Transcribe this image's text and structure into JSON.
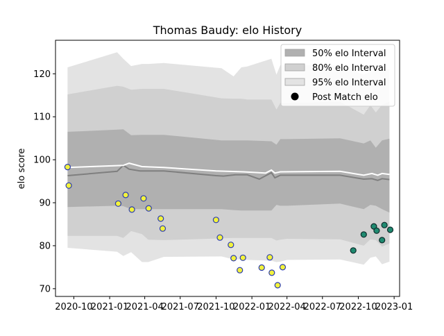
{
  "chart_data": {
    "type": "area",
    "title": "Thomas Baudy: elo History",
    "xlabel": "",
    "ylabel": "elo score",
    "xlim": [
      "2020-08-15",
      "2023-01-15"
    ],
    "ylim": [
      68.2,
      127.8
    ],
    "x_ticks": [
      "2020-10",
      "2021-01",
      "2021-04",
      "2021-07",
      "2021-10",
      "2022-01",
      "2022-04",
      "2022-07",
      "2022-10",
      "2023-01"
    ],
    "x_tick_labels": [
      "2020-10",
      "2021-01",
      "2021-04",
      "2021-07",
      "2021-10",
      "2022-01",
      "2022-04",
      "2022-07",
      "2022-10",
      "2023-01"
    ],
    "y_ticks": [
      70,
      80,
      90,
      100,
      110,
      120
    ],
    "grid": false,
    "legend_position": "top-right",
    "legend": [
      {
        "label": "50% elo Interval",
        "kind": "patch",
        "color": "#b0b0b0"
      },
      {
        "label": "80% elo Interval",
        "kind": "patch",
        "color": "#c8c8c8"
      },
      {
        "label": "95% elo Interval",
        "kind": "patch",
        "color": "#e0e0e0"
      },
      {
        "label": "Post Match elo",
        "kind": "marker",
        "color": "#000000"
      }
    ],
    "colors": {
      "band50": "#b0b0b0",
      "band80": "#d0d0d0",
      "band95": "#e3e3e3",
      "mean_line": "#ffffff",
      "median_line": "#7f7f7f",
      "marker_fill_early": "#f2f23c",
      "marker_edge_early": "#2a3bb0",
      "marker_fill_late": "#1f8a70",
      "marker_edge_late": "#0d2b2a"
    },
    "bands": {
      "x": [
        "2020-09-15",
        "2021-01-20",
        "2021-02-05",
        "2021-02-25",
        "2021-03-25",
        "2021-04-10",
        "2021-05-20",
        "2021-10-15",
        "2021-11-15",
        "2021-12-05",
        "2021-12-20",
        "2022-02-20",
        "2022-03-05",
        "2022-03-15",
        "2022-04-01",
        "2022-08-15",
        "2022-10-15",
        "2022-11-01",
        "2022-11-15",
        "2022-12-01",
        "2022-12-20"
      ],
      "lo95": [
        79.5,
        78.6,
        77.6,
        78.5,
        76.2,
        76.2,
        77.4,
        77.5,
        76.8,
        76.8,
        76.7,
        76.5,
        76.2,
        76.3,
        76.7,
        76.8,
        75.6,
        77.2,
        77.5,
        75.7,
        76.3
      ],
      "hi95": [
        121.5,
        125.0,
        123.5,
        121.8,
        122.3,
        122.3,
        122.5,
        121.3,
        119.4,
        121.5,
        121.7,
        123.5,
        119.8,
        122.0,
        122.0,
        122.0,
        119.8,
        120.5,
        121.0,
        121.3,
        121.0
      ],
      "lo80": [
        82.3,
        82.3,
        81.8,
        83.4,
        82.7,
        81.4,
        81.3,
        81.7,
        81.8,
        81.8,
        81.8,
        81.8,
        81.2,
        81.4,
        81.6,
        81.5,
        80.0,
        81.5,
        81.3,
        79.8,
        80.5
      ],
      "hi80": [
        115.2,
        117.2,
        117.0,
        116.3,
        116.5,
        116.5,
        116.5,
        114.3,
        114.2,
        114.2,
        114.0,
        114.0,
        111.7,
        113.2,
        113.2,
        113.5,
        110.5,
        112.7,
        111.0,
        112.8,
        113.5
      ],
      "lo50": [
        89.0,
        89.3,
        89.2,
        88.5,
        88.5,
        88.5,
        88.5,
        88.5,
        88.3,
        88.2,
        88.2,
        88.2,
        89.5,
        89.3,
        89.3,
        89.8,
        88.5,
        89.5,
        89.3,
        88.5,
        87.7
      ],
      "hi50": [
        106.5,
        107.0,
        107.1,
        105.7,
        105.8,
        105.8,
        105.8,
        104.5,
        104.5,
        104.5,
        104.5,
        104.3,
        103.5,
        104.8,
        104.8,
        105.0,
        103.8,
        104.5,
        102.8,
        104.5,
        104.9
      ]
    },
    "mean_line": {
      "x": [
        "2020-09-15",
        "2021-02-05",
        "2021-02-20",
        "2021-03-25",
        "2021-05-20",
        "2021-10-01",
        "2021-12-10",
        "2022-02-05",
        "2022-02-20",
        "2022-03-01",
        "2022-03-15",
        "2022-08-15",
        "2022-10-15",
        "2022-11-05",
        "2022-11-20",
        "2022-12-01",
        "2022-12-20"
      ],
      "y": [
        98.2,
        98.7,
        99.2,
        98.4,
        98.2,
        97.4,
        97.2,
        96.9,
        97.6,
        96.9,
        97.2,
        97.3,
        96.4,
        96.8,
        96.4,
        96.8,
        96.6
      ]
    },
    "median_line": {
      "x": [
        "2020-09-15",
        "2021-01-20",
        "2021-02-05",
        "2021-02-20",
        "2021-03-20",
        "2021-05-20",
        "2021-10-01",
        "2021-10-20",
        "2021-11-20",
        "2021-12-20",
        "2022-01-20",
        "2022-02-20",
        "2022-03-01",
        "2022-03-15",
        "2022-08-15",
        "2022-10-15",
        "2022-11-05",
        "2022-11-20",
        "2022-12-01",
        "2022-12-20"
      ],
      "y": [
        96.3,
        97.3,
        98.7,
        97.8,
        97.4,
        97.4,
        96.3,
        96.2,
        96.5,
        96.5,
        95.5,
        97.0,
        95.8,
        96.4,
        96.4,
        95.5,
        95.6,
        95.2,
        95.6,
        95.4
      ]
    },
    "series": [
      {
        "name": "Post Match elo",
        "x": [
          "2020-09-15",
          "2020-09-18",
          "2021-01-23",
          "2021-02-11",
          "2021-02-27",
          "2021-03-29",
          "2021-04-11",
          "2021-05-12",
          "2021-05-17",
          "2021-10-01",
          "2021-10-11",
          "2021-11-08",
          "2021-11-15",
          "2021-12-01",
          "2021-12-09",
          "2022-01-26",
          "2022-02-16",
          "2022-02-21",
          "2022-03-08",
          "2022-03-21"
        ],
        "y": [
          98.3,
          94.0,
          89.8,
          91.8,
          88.4,
          91.0,
          88.7,
          86.3,
          84.0,
          86.0,
          81.9,
          80.2,
          77.1,
          74.3,
          77.2,
          74.9,
          77.3,
          73.7,
          70.8,
          75.0
        ],
        "style": "early"
      },
      {
        "name": "Post Match elo",
        "x": [
          "2022-09-18",
          "2022-10-15",
          "2022-11-10",
          "2022-11-17",
          "2022-12-01",
          "2022-12-07",
          "2022-12-22"
        ],
        "y": [
          78.9,
          82.6,
          84.5,
          83.5,
          81.3,
          84.8,
          83.7
        ],
        "style": "late"
      }
    ]
  }
}
